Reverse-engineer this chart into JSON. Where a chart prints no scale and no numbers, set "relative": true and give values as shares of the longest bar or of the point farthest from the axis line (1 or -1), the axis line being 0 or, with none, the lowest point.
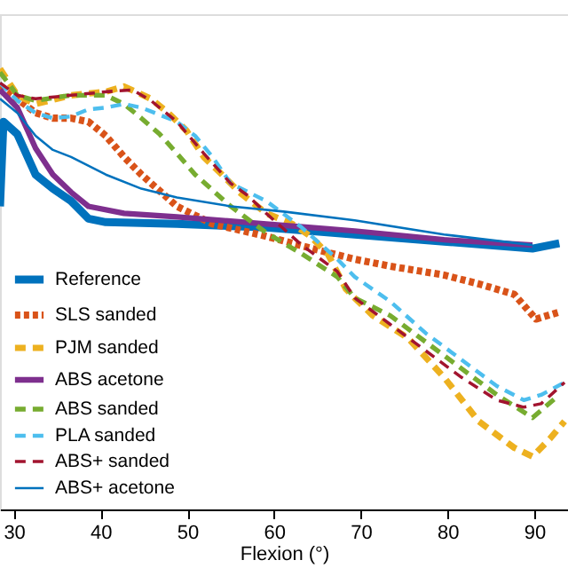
{
  "chart_data": {
    "type": "line",
    "relative": true,
    "xlabel": "Flexion (°)",
    "xlim": [
      28.4,
      93.9
    ],
    "xticks": [
      30,
      40,
      50,
      60,
      70,
      80,
      90
    ],
    "grid": false,
    "legend": "bottom left",
    "series": [
      {
        "name": "Reference",
        "color": "#0072bd",
        "line_style": "solid",
        "x": [
          28.4,
          28.8,
          30.4,
          32.5,
          34.5,
          36.6,
          38.6,
          40.6,
          48.8,
          59.1,
          69.3,
          79.6,
          89.8,
          92.9
        ],
        "values": [
          0.688,
          0.88,
          0.852,
          0.76,
          0.728,
          0.7,
          0.66,
          0.652,
          0.648,
          0.64,
          0.624,
          0.608,
          0.592,
          0.604
        ]
      },
      {
        "name": "SLS sanded",
        "color": "#d95319",
        "line_style": "dotted",
        "x": [
          28.4,
          30.4,
          32.5,
          34.5,
          36.6,
          38.6,
          40.6,
          42.7,
          44.7,
          48.8,
          52.9,
          59.1,
          65.2,
          69.3,
          73.4,
          79.6,
          83.6,
          87.7,
          90.2,
          92.9
        ],
        "values": [
          0.96,
          0.932,
          0.9,
          0.888,
          0.888,
          0.88,
          0.848,
          0.8,
          0.76,
          0.688,
          0.648,
          0.62,
          0.588,
          0.568,
          0.552,
          0.532,
          0.512,
          0.488,
          0.432,
          0.448
        ]
      },
      {
        "name": "PJM sanded",
        "color": "#edb120",
        "line_style": "dashed",
        "x": [
          28.4,
          30.4,
          32.5,
          36.6,
          40.6,
          42.7,
          45.8,
          47.8,
          49.9,
          51.9,
          54.0,
          56.0,
          59.1,
          62.1,
          64.2,
          66.2,
          68.3,
          69.3,
          71.4,
          75.5,
          79.6,
          83.6,
          87.7,
          89.8,
          91.8,
          93.5
        ],
        "values": [
          1.0,
          0.94,
          0.92,
          0.94,
          0.948,
          0.96,
          0.932,
          0.9,
          0.86,
          0.8,
          0.76,
          0.72,
          0.672,
          0.648,
          0.62,
          0.58,
          0.5,
          0.48,
          0.44,
          0.388,
          0.3,
          0.2,
          0.14,
          0.12,
          0.16,
          0.2
        ]
      },
      {
        "name": "ABS acetone",
        "color": "#7e2f8e",
        "line_style": "solid",
        "x": [
          28.4,
          30.4,
          32.5,
          34.5,
          36.6,
          38.6,
          42.7,
          48.8,
          59.1,
          69.3,
          79.6,
          89.8
        ],
        "values": [
          0.952,
          0.912,
          0.82,
          0.76,
          0.72,
          0.688,
          0.672,
          0.664,
          0.648,
          0.632,
          0.612,
          0.6
        ]
      },
      {
        "name": "ABS sanded",
        "color": "#77ac30",
        "line_style": "dashed",
        "x": [
          28.4,
          30.4,
          32.5,
          36.6,
          40.6,
          42.7,
          44.7,
          46.8,
          48.8,
          50.9,
          55.0,
          59.1,
          63.2,
          67.3,
          69.3,
          73.4,
          77.5,
          81.6,
          85.7,
          89.8,
          92.9
        ],
        "values": [
          0.992,
          0.94,
          0.928,
          0.94,
          0.94,
          0.92,
          0.888,
          0.852,
          0.808,
          0.76,
          0.688,
          0.628,
          0.58,
          0.528,
          0.48,
          0.44,
          0.38,
          0.32,
          0.26,
          0.208,
          0.26
        ]
      },
      {
        "name": "PLA sanded",
        "color": "#4dbeee",
        "line_style": "dashed",
        "x": [
          28.4,
          30.4,
          32.5,
          34.5,
          36.6,
          38.6,
          40.6,
          42.7,
          44.7,
          48.8,
          50.9,
          52.9,
          55.0,
          59.1,
          63.2,
          67.3,
          69.3,
          73.4,
          77.5,
          81.6,
          85.7,
          88.8,
          90.8,
          93.5
        ],
        "values": [
          0.968,
          0.928,
          0.9,
          0.888,
          0.892,
          0.908,
          0.912,
          0.92,
          0.912,
          0.88,
          0.848,
          0.8,
          0.74,
          0.7,
          0.64,
          0.568,
          0.528,
          0.472,
          0.4,
          0.34,
          0.28,
          0.248,
          0.26,
          0.288
        ]
      },
      {
        "name": "ABS+ sanded",
        "color": "#a2142f",
        "line_style": "dashed",
        "x": [
          28.4,
          30.4,
          32.5,
          36.6,
          40.6,
          43.7,
          45.8,
          48.8,
          51.9,
          55.0,
          57.0,
          59.1,
          63.2,
          67.3,
          69.3,
          73.4,
          77.5,
          81.6,
          85.7,
          88.8,
          90.8,
          93.5
        ],
        "values": [
          0.968,
          0.94,
          0.932,
          0.94,
          0.948,
          0.952,
          0.928,
          0.88,
          0.808,
          0.74,
          0.712,
          0.672,
          0.6,
          0.54,
          0.48,
          0.42,
          0.36,
          0.3,
          0.248,
          0.232,
          0.24,
          0.288
        ]
      },
      {
        "name": "ABS+ acetone",
        "color": "#0072bd",
        "line_style": "solid",
        "x": [
          28.4,
          30.4,
          32.5,
          34.5,
          36.6,
          40.6,
          44.7,
          48.8,
          55.0,
          61.1,
          69.3,
          79.6,
          89.8
        ],
        "values": [
          0.932,
          0.9,
          0.848,
          0.816,
          0.8,
          0.76,
          0.728,
          0.708,
          0.688,
          0.676,
          0.656,
          0.624,
          0.6
        ]
      }
    ]
  }
}
